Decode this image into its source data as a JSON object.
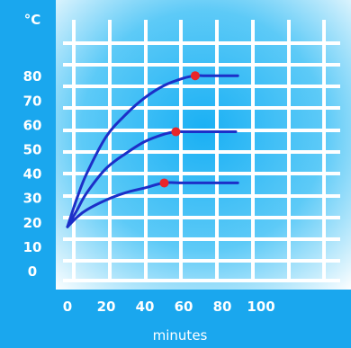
{
  "chart_data": {
    "type": "line",
    "title": "",
    "xlabel": "minutes",
    "ylabel": "°C",
    "xlim": [
      0,
      100
    ],
    "ylim": [
      0,
      80
    ],
    "x_ticks": [
      "0",
      "20",
      "40",
      "60",
      "80",
      "100"
    ],
    "y_ticks": [
      "0",
      "10",
      "20",
      "30",
      "40",
      "50",
      "60",
      "70",
      "80"
    ],
    "grid": true,
    "series": [
      {
        "x": [
          0,
          5,
          10,
          20,
          30,
          40,
          50,
          60,
          66,
          70,
          80,
          88
        ],
        "y": [
          18,
          30,
          40,
          55,
          64,
          71,
          76,
          79,
          80,
          80,
          80,
          80
        ],
        "marker": {
          "x": 66,
          "y": 80
        }
      },
      {
        "x": [
          0,
          5,
          10,
          20,
          30,
          40,
          50,
          56,
          60,
          70,
          80,
          87
        ],
        "y": [
          18,
          25,
          32,
          42,
          48,
          53,
          56,
          57,
          57,
          57,
          57,
          57
        ],
        "marker": {
          "x": 56,
          "y": 57
        }
      },
      {
        "x": [
          0,
          5,
          10,
          20,
          30,
          40,
          50,
          60,
          70,
          80,
          88
        ],
        "y": [
          18,
          22,
          25,
          29,
          32,
          34,
          36,
          36,
          36,
          36,
          36
        ],
        "marker": {
          "x": 50,
          "y": 36
        }
      }
    ],
    "colors": {
      "frame": "#1aa7ee",
      "background": "#ffffff",
      "grid": "#ffffff",
      "line": "#1c2fc8",
      "marker": "#e8262a",
      "text": "#ffffff"
    }
  }
}
